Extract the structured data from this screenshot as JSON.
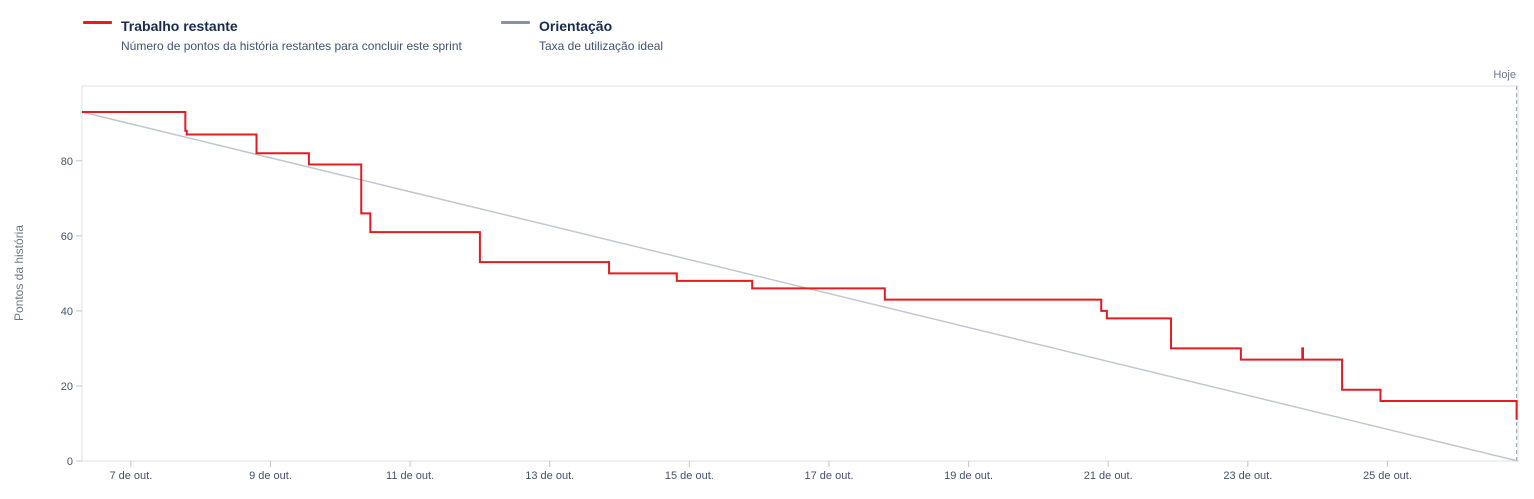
{
  "legend": {
    "remaining": {
      "title": "Trabalho restante",
      "description": "Número de pontos da história restantes para concluir este sprint",
      "color": "#e31b23"
    },
    "guideline": {
      "title": "Orientação",
      "description": "Taxa de utilização ideal",
      "color": "#8993a4"
    }
  },
  "chart_data": {
    "type": "line",
    "ylabel": "Pontos da história",
    "xlabel": "",
    "ylim": [
      0,
      93
    ],
    "yticks": [
      0,
      20,
      40,
      60,
      80
    ],
    "xticks": [
      {
        "label": "7 de out.",
        "day": 7
      },
      {
        "label": "9 de out.",
        "day": 9
      },
      {
        "label": "11 de out.",
        "day": 11
      },
      {
        "label": "13 de out.",
        "day": 13
      },
      {
        "label": "15 de out.",
        "day": 15
      },
      {
        "label": "17 de out.",
        "day": 17
      },
      {
        "label": "19 de out.",
        "day": 19
      },
      {
        "label": "21 de out.",
        "day": 21
      },
      {
        "label": "23 de out.",
        "day": 23
      },
      {
        "label": "25 de out.",
        "day": 25
      }
    ],
    "xlim": [
      6.3,
      26.87
    ],
    "today": {
      "label": "Hoje",
      "day": 26.85
    },
    "grid": false,
    "series": [
      {
        "name": "Trabalho restante",
        "color": "#e31b23",
        "step": true,
        "points": [
          [
            6.3,
            93
          ],
          [
            7.78,
            88
          ],
          [
            7.8,
            87
          ],
          [
            8.8,
            82
          ],
          [
            9.55,
            79
          ],
          [
            10.3,
            66
          ],
          [
            10.43,
            61
          ],
          [
            12.0,
            53
          ],
          [
            13.85,
            50
          ],
          [
            14.82,
            48
          ],
          [
            15.9,
            46
          ],
          [
            17.8,
            43
          ],
          [
            20.9,
            40
          ],
          [
            20.98,
            38
          ],
          [
            21.9,
            30
          ],
          [
            22.9,
            27
          ],
          [
            23.78,
            30
          ],
          [
            23.79,
            27
          ],
          [
            24.35,
            19
          ],
          [
            24.9,
            16
          ],
          [
            26.85,
            11
          ]
        ]
      },
      {
        "name": "Orientação",
        "color": "#c1c7d0",
        "step": false,
        "points": [
          [
            6.3,
            93
          ],
          [
            26.87,
            0
          ]
        ]
      }
    ]
  }
}
